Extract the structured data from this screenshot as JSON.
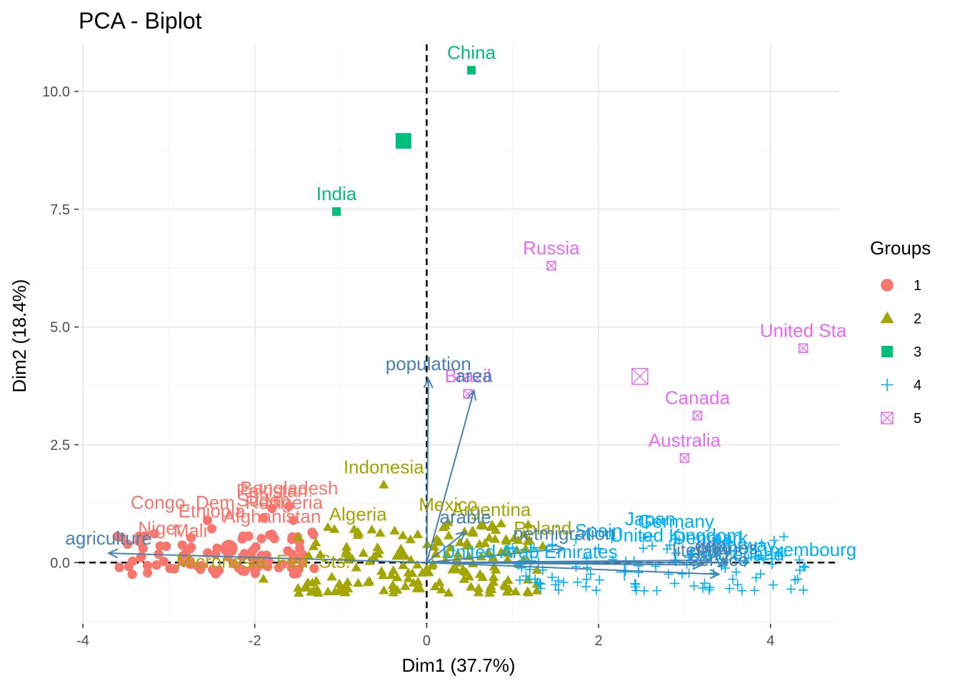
{
  "chart_data": {
    "type": "scatter",
    "title": "PCA - Biplot",
    "xlabel": "Dim1 (37.7%)",
    "ylabel": "Dim2 (18.4%)",
    "xlim": [
      -4.05,
      4.8
    ],
    "ylim": [
      -1.3,
      11.0
    ],
    "x_ticks": [
      -4,
      -2,
      0,
      2,
      4
    ],
    "x_tick_labels": [
      "-4",
      "-2",
      "0",
      "2",
      "4"
    ],
    "y_ticks": [
      0,
      2.5,
      5,
      7.5,
      10
    ],
    "y_tick_labels": [
      "0.0",
      "2.5",
      "5.0",
      "7.5",
      "10.0"
    ],
    "grid": true,
    "legend": {
      "title": "Groups",
      "position": "right",
      "entries": [
        "1",
        "2",
        "3",
        "4",
        "5"
      ]
    },
    "colors": {
      "1": "#F8766D",
      "2": "#A3A500",
      "3": "#00BF7D",
      "4": "#00B0F6",
      "5": "#E76BF3",
      "arrow": "#4682B4",
      "grid": "#EBEBEB",
      "grid_minor": "#F4F4F4"
    },
    "labeled_points": [
      {
        "name": "China",
        "x": 0.52,
        "y": 10.45,
        "group": "3"
      },
      {
        "name": "India",
        "x": -1.05,
        "y": 7.45,
        "group": "3"
      },
      {
        "name": "Russia",
        "x": 1.45,
        "y": 6.3,
        "group": "5"
      },
      {
        "name": "United Sta",
        "x": 4.38,
        "y": 4.55,
        "group": "5"
      },
      {
        "name": "Brazil",
        "x": 0.48,
        "y": 3.58,
        "group": "5"
      },
      {
        "name": "Canada",
        "x": 3.15,
        "y": 3.12,
        "group": "5"
      },
      {
        "name": "Australia",
        "x": 3.0,
        "y": 2.22,
        "group": "5"
      },
      {
        "name": "Indonesia",
        "x": -0.5,
        "y": 1.65,
        "group": "2"
      },
      {
        "name": "Bangladesh",
        "x": -1.6,
        "y": 1.2,
        "group": "1"
      },
      {
        "name": "Pakistan",
        "x": -1.8,
        "y": 1.15,
        "group": "1"
      },
      {
        "name": "Nigeria",
        "x": -1.55,
        "y": 0.9,
        "group": "1"
      },
      {
        "name": "Congo, Dem. Rep.",
        "x": -2.55,
        "y": 0.9,
        "group": "1"
      },
      {
        "name": "Sudan",
        "x": -1.9,
        "y": 0.95,
        "group": "1"
      },
      {
        "name": "Ethiopia",
        "x": -2.5,
        "y": 0.72,
        "group": "1"
      },
      {
        "name": "Afghanistan",
        "x": -1.8,
        "y": 0.6,
        "group": "1"
      },
      {
        "name": "Niger",
        "x": -3.1,
        "y": 0.35,
        "group": "1"
      },
      {
        "name": "Mali",
        "x": -2.75,
        "y": 0.3,
        "group": "1"
      },
      {
        "name": "Algeria",
        "x": -0.8,
        "y": 0.65,
        "group": "2"
      },
      {
        "name": "Mexico",
        "x": 0.25,
        "y": 0.85,
        "group": "2"
      },
      {
        "name": "Argentina",
        "x": 0.75,
        "y": 0.75,
        "group": "2"
      },
      {
        "name": "Poland",
        "x": 1.35,
        "y": 0.35,
        "group": "2"
      },
      {
        "name": "Micronesia, Fed. Sts.",
        "x": -1.9,
        "y": -0.35,
        "group": "2"
      },
      {
        "name": "Japan",
        "x": 2.6,
        "y": 0.55,
        "group": "4"
      },
      {
        "name": "Germany",
        "x": 2.9,
        "y": 0.5,
        "group": "4"
      },
      {
        "name": "Spain",
        "x": 2.0,
        "y": 0.3,
        "group": "4"
      },
      {
        "name": "United Kingdom",
        "x": 2.9,
        "y": 0.2,
        "group": "4"
      },
      {
        "name": "Denmark",
        "x": 3.3,
        "y": 0.15,
        "group": "4"
      },
      {
        "name": "Switzerland",
        "x": 3.6,
        "y": -0.2,
        "group": "4"
      },
      {
        "name": "Luxembourg",
        "x": 4.4,
        "y": -0.1,
        "group": "4"
      },
      {
        "name": "Norway",
        "x": 3.7,
        "y": 0.0,
        "group": "4"
      },
      {
        "name": "United Arab Emirates",
        "x": 1.2,
        "y": -0.15,
        "group": "4"
      }
    ],
    "centroids": [
      {
        "group": "1",
        "x": -2.3,
        "y": 0.3
      },
      {
        "group": "2",
        "x": -0.3,
        "y": 0.2
      },
      {
        "group": "3",
        "x": -0.27,
        "y": 8.95
      },
      {
        "group": "4",
        "x": 2.3,
        "y": -0.2
      },
      {
        "group": "5",
        "x": 2.48,
        "y": 3.95
      }
    ],
    "variables": [
      {
        "name": "population",
        "x": 0.02,
        "y": 3.9
      },
      {
        "name": "area",
        "x": 0.55,
        "y": 3.65
      },
      {
        "name": "agriculture",
        "x": -3.7,
        "y": 0.2
      },
      {
        "name": "arable",
        "x": 0.45,
        "y": 0.65
      },
      {
        "name": "netmigration",
        "x": 1.6,
        "y": 0.3
      },
      {
        "name": "phones",
        "x": 3.5,
        "y": 0.0
      },
      {
        "name": "gdp",
        "x": 3.3,
        "y": 0.05
      },
      {
        "name": "literacy",
        "x": 3.2,
        "y": -0.05
      },
      {
        "name": "service",
        "x": 3.4,
        "y": -0.25
      }
    ]
  }
}
